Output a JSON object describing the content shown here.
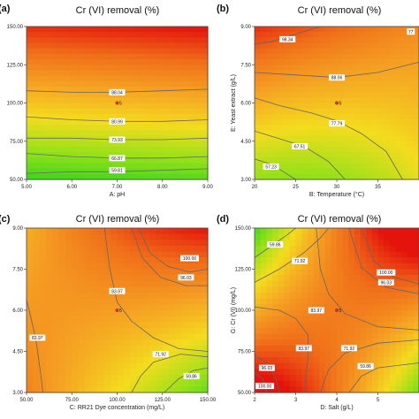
{
  "chart_data": [
    {
      "panel": "(a)",
      "type": "heatmap",
      "title": "Cr (VI) removal (%)",
      "xlabel": "A: pH",
      "ylabel": "",
      "xlim": [
        5,
        9
      ],
      "ylim": [
        50,
        150
      ],
      "xticks": [
        "5.00",
        "6.00",
        "7.00",
        "8.00",
        "9.00"
      ],
      "yticks": [
        "50.00",
        "75.00",
        "100.00",
        "125.00",
        "150.00"
      ],
      "colors": {
        "high": "#e8170b",
        "mid": "#f39a1c",
        "low": "#2cd320"
      },
      "contours": [
        {
          "label": "88.04",
          "points": [
            [
              5,
              108
            ],
            [
              6,
              107
            ],
            [
              7,
              107
            ],
            [
              8,
              108
            ],
            [
              9,
              109
            ]
          ]
        },
        {
          "label": "80.99",
          "points": [
            [
              5,
              91
            ],
            [
              6,
              89
            ],
            [
              7,
              88
            ],
            [
              8,
              88
            ],
            [
              9,
              89
            ]
          ]
        },
        {
          "label": "73.93",
          "points": [
            [
              5,
              77
            ],
            [
              6,
              77
            ],
            [
              7,
              76
            ],
            [
              8,
              76
            ],
            [
              9,
              77
            ]
          ]
        },
        {
          "label": "66.87",
          "points": [
            [
              5,
              67
            ],
            [
              6,
              65
            ],
            [
              7,
              64
            ],
            [
              8,
              64
            ],
            [
              9,
              65
            ]
          ]
        },
        {
          "label": "59.81",
          "points": [
            [
              5,
              54
            ],
            [
              6,
              55
            ],
            [
              7,
              55
            ],
            [
              8,
              56
            ],
            [
              9,
              57
            ]
          ]
        }
      ],
      "labels": [
        {
          "text": "88.04",
          "x": 7.0,
          "y": 107
        },
        {
          "text": "80.99",
          "x": 7.0,
          "y": 88
        },
        {
          "text": "73.93",
          "x": 7.0,
          "y": 76
        },
        {
          "text": "66.87",
          "x": 7.0,
          "y": 64
        },
        {
          "text": "59.81",
          "x": 7.0,
          "y": 56
        }
      ],
      "design_point": {
        "x": 7,
        "y": 100,
        "label": "5"
      }
    },
    {
      "panel": "(b)",
      "type": "heatmap",
      "title": "Cr (VI) removal (%)",
      "xlabel": "B: Temperature (°C)",
      "ylabel": "E: Yeast extract (g/L)",
      "xlim": [
        20,
        40
      ],
      "ylim": [
        3,
        9
      ],
      "xticks": [
        "20",
        "25",
        "30",
        "35"
      ],
      "yticks": [
        "3.00",
        "4.50",
        "6.00",
        "7.50",
        "9.00"
      ],
      "colors": {
        "high": "#e8170b",
        "mid": "#f39a1c",
        "low": "#2cd320"
      },
      "contours": [
        {
          "label": "98.34",
          "points": [
            [
              20,
              8.3
            ],
            [
              22,
              8.4
            ],
            [
              24,
              8.6
            ],
            [
              26,
              8.8
            ],
            [
              28,
              9.0
            ]
          ]
        },
        {
          "label": "88.06",
          "points": [
            [
              20,
              7.2
            ],
            [
              25,
              7.1
            ],
            [
              30,
              7.0
            ],
            [
              35,
              7.2
            ],
            [
              40,
              7.6
            ]
          ]
        },
        {
          "label": "77.79",
          "points": [
            [
              20,
              6.2
            ],
            [
              23,
              5.9
            ],
            [
              27,
              5.6
            ],
            [
              30,
              5.3
            ],
            [
              33,
              4.8
            ],
            [
              36,
              4.1
            ],
            [
              38,
              3.0
            ]
          ]
        },
        {
          "label": "67.51",
          "points": [
            [
              20,
              4.9
            ],
            [
              23,
              4.6
            ],
            [
              26,
              4.3
            ],
            [
              29,
              3.7
            ],
            [
              31,
              3.0
            ]
          ]
        },
        {
          "label": "57.23",
          "points": [
            [
              20,
              3.8
            ],
            [
              22,
              3.6
            ],
            [
              24,
              3.2
            ],
            [
              25,
              3.0
            ]
          ]
        }
      ],
      "labels": [
        {
          "text": "98.34",
          "x": 24,
          "y": 8.5
        },
        {
          "text": "77",
          "x": 39,
          "y": 8.8
        },
        {
          "text": "88.06",
          "x": 30,
          "y": 7.0
        },
        {
          "text": "77.79",
          "x": 30,
          "y": 5.2
        },
        {
          "text": "67.51",
          "x": 25.5,
          "y": 4.3
        },
        {
          "text": "57.23",
          "x": 22,
          "y": 3.5
        }
      ],
      "design_point": {
        "x": 30,
        "y": 6.0,
        "label": "5"
      }
    },
    {
      "panel": "(c)",
      "type": "heatmap",
      "title": "Cr (VI) removal (%)",
      "xlabel": "C: RR21 Dye concentration (mg/L)",
      "ylabel": "",
      "xlim": [
        50,
        150
      ],
      "ylim": [
        3,
        9
      ],
      "xticks": [
        "50.00",
        "75.00",
        "100.00",
        "125.00",
        "150.00"
      ],
      "yticks": [
        "3.00",
        "4.50",
        "6.00",
        "7.50",
        "9.00"
      ],
      "colors": {
        "high": "#e8170b",
        "mid": "#f39a1c",
        "low": "#2cd320"
      },
      "contours": [
        {
          "label": "100.00",
          "points": [
            [
              112,
              9.0
            ],
            [
              118,
              8.1
            ],
            [
              128,
              7.6
            ],
            [
              140,
              7.4
            ],
            [
              150,
              7.5
            ]
          ]
        },
        {
          "label": "96.03",
          "points": [
            [
              108,
              9.0
            ],
            [
              114,
              7.9
            ],
            [
              124,
              7.2
            ],
            [
              138,
              6.9
            ],
            [
              150,
              6.9
            ]
          ]
        },
        {
          "label": "83.97",
          "points": [
            [
              93,
              9.0
            ],
            [
              96,
              7.5
            ],
            [
              100,
              6.3
            ],
            [
              108,
              5.6
            ],
            [
              120,
              5.0
            ],
            [
              134,
              4.6
            ],
            [
              150,
              4.5
            ]
          ]
        },
        {
          "label": "83.97",
          "points": [
            [
              50,
              6.4
            ],
            [
              55,
              5.0
            ],
            [
              58,
              3.6
            ],
            [
              59,
              3.0
            ]
          ]
        },
        {
          "label": "71.92",
          "points": [
            [
              108,
              3.0
            ],
            [
              113,
              3.6
            ],
            [
              120,
              4.1
            ],
            [
              135,
              4.4
            ],
            [
              150,
              4.3
            ]
          ]
        },
        {
          "label": "59.86",
          "points": [
            [
              126,
              3.0
            ],
            [
              134,
              3.5
            ],
            [
              142,
              3.8
            ],
            [
              150,
              3.9
            ]
          ]
        }
      ],
      "labels": [
        {
          "text": "100.00",
          "x": 140,
          "y": 7.9
        },
        {
          "text": "96.03",
          "x": 138,
          "y": 7.2
        },
        {
          "text": "83.97",
          "x": 100,
          "y": 6.7
        },
        {
          "text": "83.97",
          "x": 56,
          "y": 5.0
        },
        {
          "text": "71.92",
          "x": 124,
          "y": 4.4
        },
        {
          "text": "59.86",
          "x": 141,
          "y": 3.6
        }
      ],
      "design_point": {
        "x": 100,
        "y": 6.0,
        "label": "5"
      }
    },
    {
      "panel": "(d)",
      "type": "heatmap",
      "title": "Cr (VI) removal (%)",
      "xlabel": "D: Salt (g/L)",
      "ylabel": "G: Cr (VI) (mg/L)",
      "xlim": [
        2,
        6
      ],
      "ylim": [
        50,
        150
      ],
      "xticks": [
        "2",
        "3",
        "4",
        "5"
      ],
      "yticks": [
        "50.00",
        "75.00",
        "100.00",
        "125.00",
        "150.00"
      ],
      "colors": {
        "high": "#e8170b",
        "mid": "#f39a1c",
        "low": "#2cd320"
      },
      "contours": [
        {
          "label": "59.86",
          "points": [
            [
              2,
              132
            ],
            [
              2.4,
              139
            ],
            [
              2.8,
              146
            ],
            [
              3.0,
              150
            ]
          ]
        },
        {
          "label": "71.92",
          "points": [
            [
              2,
              117
            ],
            [
              2.6,
              125
            ],
            [
              3.2,
              135
            ],
            [
              3.6,
              144
            ],
            [
              3.8,
              150
            ]
          ]
        },
        {
          "label": "100.00",
          "points": [
            [
              4.6,
              150
            ],
            [
              4.9,
              130
            ],
            [
              5.4,
              120
            ],
            [
              6,
              116
            ]
          ]
        },
        {
          "label": "96.03",
          "points": [
            [
              4.3,
              150
            ],
            [
              4.6,
              126
            ],
            [
              5.2,
              114
            ],
            [
              6,
              110
            ]
          ]
        },
        {
          "label": "83.97",
          "points": [
            [
              3.5,
              150
            ],
            [
              3.6,
              125
            ],
            [
              3.8,
              110
            ],
            [
              4.2,
              98
            ],
            [
              5,
              90
            ],
            [
              6,
              88
            ]
          ]
        },
        {
          "label": "83.97",
          "points": [
            [
              2,
              102
            ],
            [
              2.6,
              100
            ],
            [
              3.0,
              95
            ],
            [
              3.3,
              85
            ],
            [
              3.3,
              70
            ],
            [
              3.2,
              50
            ]
          ]
        },
        {
          "label": "71.92",
          "points": [
            [
              3.6,
              50
            ],
            [
              3.8,
              64
            ],
            [
              4.2,
              74
            ],
            [
              5,
              80
            ],
            [
              6,
              82
            ]
          ]
        },
        {
          "label": "59.86",
          "points": [
            [
              4.3,
              50
            ],
            [
              4.6,
              60
            ],
            [
              5,
              65
            ],
            [
              6,
              68
            ]
          ]
        },
        {
          "label": "96.03",
          "points": [
            [
              2,
              73
            ],
            [
              2.3,
              68
            ],
            [
              2.5,
              60
            ],
            [
              2.6,
              50
            ]
          ]
        },
        {
          "label": "100.00",
          "points": [
            [
              2,
              62
            ],
            [
              2.2,
              58
            ],
            [
              2.3,
              50
            ]
          ]
        }
      ],
      "labels": [
        {
          "text": "59.86",
          "x": 2.5,
          "y": 140
        },
        {
          "text": "71.92",
          "x": 3.1,
          "y": 130
        },
        {
          "text": "100.00",
          "x": 5.2,
          "y": 123
        },
        {
          "text": "96.03",
          "x": 5.2,
          "y": 117
        },
        {
          "text": "83.97",
          "x": 3.5,
          "y": 100
        },
        {
          "text": "83.97",
          "x": 3.2,
          "y": 77
        },
        {
          "text": "71.92",
          "x": 4.3,
          "y": 77
        },
        {
          "text": "59.86",
          "x": 4.7,
          "y": 66
        },
        {
          "text": "96.03",
          "x": 2.3,
          "y": 65
        },
        {
          "text": "100.00",
          "x": 2.25,
          "y": 54
        }
      ],
      "design_point": {
        "x": 4,
        "y": 100,
        "label": "5"
      }
    }
  ]
}
